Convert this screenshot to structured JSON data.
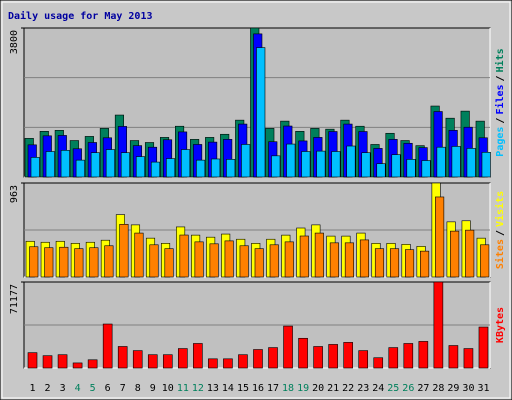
{
  "chart_data": [
    {
      "type": "bar",
      "title": "Daily usage for May 2013",
      "ylim": [
        0,
        3800
      ],
      "yticks": [
        3800
      ],
      "separator": "/",
      "series": [
        {
          "name": "Hits",
          "color": "#00805c",
          "values": [
            985,
            1165,
            1190,
            930,
            1035,
            1240,
            1580,
            930,
            880,
            1010,
            1295,
            960,
            1010,
            1090,
            1450,
            3800,
            1240,
            1425,
            1165,
            1240,
            1220,
            1450,
            1295,
            830,
            1115,
            930,
            800,
            1810,
            1500,
            1680,
            1425
          ]
        },
        {
          "name": "Files",
          "color": "#0000ff",
          "values": [
            820,
            1050,
            1060,
            720,
            880,
            1000,
            1290,
            800,
            760,
            950,
            1150,
            830,
            890,
            960,
            1350,
            3650,
            900,
            1300,
            920,
            1010,
            1160,
            1350,
            1160,
            730,
            960,
            860,
            750,
            1670,
            1190,
            1270,
            1000
          ]
        },
        {
          "name": "Pages",
          "color": "#00c0ff",
          "values": [
            500,
            650,
            680,
            430,
            620,
            700,
            620,
            520,
            380,
            470,
            700,
            430,
            460,
            450,
            830,
            3300,
            540,
            840,
            650,
            660,
            650,
            790,
            620,
            340,
            570,
            450,
            420,
            760,
            780,
            730,
            630
          ]
        }
      ]
    },
    {
      "type": "bar",
      "ylim": [
        0,
        963
      ],
      "yticks": [
        963
      ],
      "separator": "/",
      "series": [
        {
          "name": "Visits",
          "color": "#ffff00",
          "values": [
            366,
            356,
            366,
            345,
            356,
            377,
            639,
            534,
            398,
            345,
            513,
            429,
            408,
            440,
            387,
            345,
            387,
            429,
            502,
            534,
            419,
            419,
            450,
            345,
            345,
            335,
            314,
            963,
            565,
            576,
            398
          ]
        },
        {
          "name": "Sites",
          "color": "#ff8000",
          "values": [
            310,
            300,
            305,
            290,
            300,
            320,
            540,
            450,
            330,
            290,
            430,
            360,
            340,
            370,
            320,
            290,
            330,
            360,
            420,
            450,
            350,
            350,
            380,
            290,
            290,
            280,
            265,
            820,
            470,
            480,
            330
          ]
        }
      ]
    },
    {
      "type": "bar",
      "ylim": [
        0,
        71177
      ],
      "yticks": [
        71177
      ],
      "categories": [
        "1",
        "2",
        "3",
        "4",
        "5",
        "6",
        "7",
        "8",
        "9",
        "10",
        "11",
        "12",
        "13",
        "14",
        "15",
        "16",
        "17",
        "18",
        "19",
        "20",
        "21",
        "22",
        "23",
        "24",
        "25",
        "26",
        "27",
        "28",
        "29",
        "30",
        "31"
      ],
      "category_colors": [
        "#000",
        "#000",
        "#000",
        "#00805c",
        "#00805c",
        "#000",
        "#000",
        "#000",
        "#000",
        "#000",
        "#00805c",
        "#00805c",
        "#000",
        "#000",
        "#000",
        "#000",
        "#000",
        "#00805c",
        "#00805c",
        "#000",
        "#000",
        "#000",
        "#000",
        "#000",
        "#00805c",
        "#00805c",
        "#000",
        "#000",
        "#000",
        "#000",
        "#000"
      ],
      "series": [
        {
          "name": "KBytes",
          "color": "#ff0000",
          "values": [
            12700,
            10200,
            11000,
            4200,
            6800,
            36400,
            17800,
            14400,
            11000,
            11000,
            16100,
            20300,
            7600,
            7600,
            11000,
            15300,
            16900,
            34700,
            24600,
            17800,
            19500,
            21200,
            14400,
            8500,
            16900,
            20300,
            22000,
            71177,
            18600,
            16100,
            33900
          ]
        }
      ]
    }
  ]
}
